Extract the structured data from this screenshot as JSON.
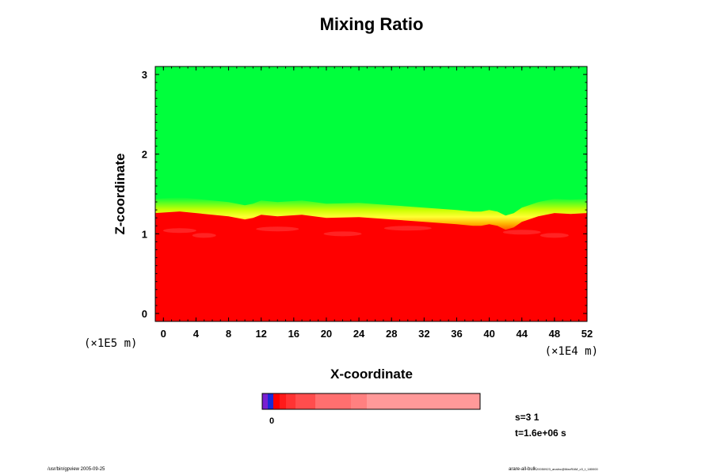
{
  "chart_data": {
    "type": "heatmap",
    "title": "Mixing Ratio",
    "xlabel": "X-coordinate",
    "ylabel": "Z-coordinate",
    "x_unit_label": "(×1E4 m)",
    "y_unit_label": "(×1E5 m)",
    "xlim": [
      -1,
      52
    ],
    "ylim": [
      -0.1,
      3.1
    ],
    "x_ticks": [
      0,
      4,
      8,
      12,
      16,
      20,
      24,
      28,
      32,
      36,
      40,
      44,
      48,
      52
    ],
    "y_ticks": [
      0,
      1,
      2,
      3
    ],
    "grid": false,
    "regions": [
      {
        "name": "upper",
        "color": "#00ff3c"
      },
      {
        "name": "lower",
        "color": "#ff0000"
      }
    ],
    "interface_profile": {
      "x": [
        -1,
        2,
        5,
        8,
        10,
        11,
        12,
        14,
        17,
        20,
        24,
        28,
        32,
        36,
        38,
        39,
        40,
        41,
        42,
        43,
        44,
        46,
        48,
        50,
        52
      ],
      "z": [
        1.26,
        1.28,
        1.25,
        1.22,
        1.18,
        1.2,
        1.24,
        1.22,
        1.24,
        1.2,
        1.21,
        1.18,
        1.15,
        1.12,
        1.1,
        1.1,
        1.12,
        1.1,
        1.05,
        1.08,
        1.15,
        1.22,
        1.26,
        1.25,
        1.26
      ]
    },
    "colorbar": {
      "colors": [
        "#7a1fd1",
        "#1a2bd6",
        "#ff0000",
        "#ff1a1a",
        "#ff3333",
        "#ff4d4d",
        "#ff6f6f",
        "#ff8080",
        "#ff9999"
      ],
      "tick_label": "0"
    }
  },
  "info": {
    "step": "s=3 1",
    "time": "t=1.6e+06 s"
  },
  "footer": {
    "left": "/usr/bin/gpview 2005-09-25",
    "right_main": "arare-all-bulk",
    "right_small": "20050923_analnc@MaxRAM_c3_t_180000"
  }
}
